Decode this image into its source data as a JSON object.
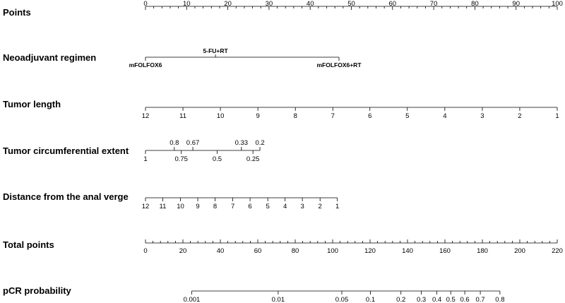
{
  "chart_data": {
    "type": "nomogram",
    "rows": [
      {
        "label": "Points",
        "kind": "points",
        "range": [
          0,
          100
        ],
        "labeled_ticks": [
          0,
          10,
          20,
          30,
          40,
          50,
          60,
          70,
          80,
          90,
          100
        ],
        "minor_step": 2
      },
      {
        "label": "Neoadjuvant regimen",
        "kind": "categorical",
        "categories": [
          {
            "name": "mFOLFOX6",
            "points": 0,
            "side": "below"
          },
          {
            "name": "5-FU+RT",
            "points": 17,
            "side": "above"
          },
          {
            "name": "mFOLFOX6+RT",
            "points": 47,
            "side": "below"
          }
        ]
      },
      {
        "label": "Tumor length",
        "kind": "continuous",
        "ticks": [
          {
            "label": "12",
            "points": 0
          },
          {
            "label": "11",
            "points": 9.1
          },
          {
            "label": "10",
            "points": 18.2
          },
          {
            "label": "9",
            "points": 27.3
          },
          {
            "label": "8",
            "points": 36.4
          },
          {
            "label": "7",
            "points": 45.5
          },
          {
            "label": "6",
            "points": 54.5
          },
          {
            "label": "5",
            "points": 63.6
          },
          {
            "label": "4",
            "points": 72.7
          },
          {
            "label": "3",
            "points": 81.8
          },
          {
            "label": "2",
            "points": 90.9
          },
          {
            "label": "1",
            "points": 100
          }
        ]
      },
      {
        "label": "Tumor circumferential extent",
        "kind": "continuous",
        "ticks": [
          {
            "label": "1",
            "points": 0,
            "side": "below"
          },
          {
            "label": "0.8",
            "points": 7,
            "side": "above"
          },
          {
            "label": "0.75",
            "points": 8.7,
            "side": "below"
          },
          {
            "label": "0.67",
            "points": 11.5,
            "side": "above"
          },
          {
            "label": "0.5",
            "points": 17.4,
            "side": "below"
          },
          {
            "label": "0.33",
            "points": 23.3,
            "side": "above"
          },
          {
            "label": "0.25",
            "points": 26.1,
            "side": "below"
          },
          {
            "label": "0.2",
            "points": 27.8,
            "side": "above"
          }
        ]
      },
      {
        "label": "Distance from the anal verge",
        "kind": "continuous",
        "ticks": [
          {
            "label": "12",
            "points": 0
          },
          {
            "label": "11",
            "points": 4.2
          },
          {
            "label": "10",
            "points": 8.5
          },
          {
            "label": "9",
            "points": 12.7
          },
          {
            "label": "8",
            "points": 16.9
          },
          {
            "label": "7",
            "points": 21.2
          },
          {
            "label": "6",
            "points": 25.4
          },
          {
            "label": "5",
            "points": 29.7
          },
          {
            "label": "4",
            "points": 33.9
          },
          {
            "label": "3",
            "points": 38.1
          },
          {
            "label": "2",
            "points": 42.4
          },
          {
            "label": "1",
            "points": 46.6
          }
        ]
      },
      {
        "label": "Total points",
        "kind": "points",
        "range": [
          0,
          220
        ],
        "labeled_ticks": [
          0,
          20,
          40,
          60,
          80,
          100,
          120,
          140,
          160,
          180,
          200,
          220
        ],
        "minor_step": 4
      },
      {
        "label": "pCR probability",
        "kind": "continuous_total",
        "ticks": [
          {
            "label": "0.001",
            "total_points": 24.7
          },
          {
            "label": "0.01",
            "total_points": 70.9
          },
          {
            "label": "0.05",
            "total_points": 104.9
          },
          {
            "label": "0.1",
            "total_points": 120.2
          },
          {
            "label": "0.2",
            "total_points": 136.5
          },
          {
            "label": "0.3",
            "total_points": 147.4
          },
          {
            "label": "0.4",
            "total_points": 155.7
          },
          {
            "label": "0.5",
            "total_points": 163.1
          },
          {
            "label": "0.6",
            "total_points": 170.6
          },
          {
            "label": "0.7",
            "total_points": 178.9
          },
          {
            "label": "0.8",
            "total_points": 189.4
          }
        ]
      }
    ]
  }
}
